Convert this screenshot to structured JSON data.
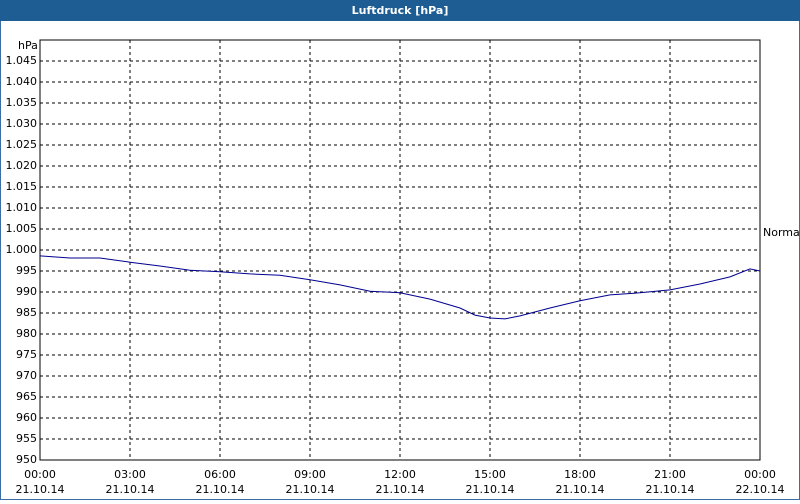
{
  "chart_data": {
    "type": "line",
    "title": "Luftdruck [hPa]",
    "y_unit": "hPa",
    "annotation": "Normal",
    "x": [
      "21.10.14 00:00",
      "21.10.14 01:00",
      "21.10.14 02:00",
      "21.10.14 03:00",
      "21.10.14 04:00",
      "21.10.14 05:00",
      "21.10.14 06:00",
      "21.10.14 07:00",
      "21.10.14 08:00",
      "21.10.14 09:00",
      "21.10.14 10:00",
      "21.10.14 11:00",
      "21.10.14 12:00",
      "21.10.14 13:00",
      "21.10.14 14:00",
      "21.10.14 14:30",
      "21.10.14 15:00",
      "21.10.14 15:30",
      "21.10.14 16:00",
      "21.10.14 17:00",
      "21.10.14 18:00",
      "21.10.14 19:00",
      "21.10.14 20:00",
      "21.10.14 21:00",
      "21.10.14 22:00",
      "21.10.14 23:00",
      "21.10.14 23:40",
      "22.10.14 00:00"
    ],
    "series": [
      {
        "color": "#000090",
        "values": [
          998.6,
          998.1,
          998.1,
          997.1,
          996.2,
          995.2,
          994.8,
          994.3,
          994.0,
          992.9,
          991.7,
          990.2,
          989.8,
          988.3,
          986.2,
          984.5,
          983.8,
          983.6,
          984.3,
          986.2,
          987.9,
          989.3,
          989.8,
          990.5,
          991.9,
          993.6,
          995.5,
          995.0
        ]
      }
    ],
    "xlim": [
      "21.10.14 00:00",
      "22.10.14 00:00"
    ],
    "xticks": [
      {
        "value": "21.10.14 00:00",
        "label": [
          "00:00",
          "21.10.14"
        ]
      },
      {
        "value": "21.10.14 03:00",
        "label": [
          "03:00",
          "21.10.14"
        ]
      },
      {
        "value": "21.10.14 06:00",
        "label": [
          "06:00",
          "21.10.14"
        ]
      },
      {
        "value": "21.10.14 09:00",
        "label": [
          "09:00",
          "21.10.14"
        ]
      },
      {
        "value": "21.10.14 12:00",
        "label": [
          "12:00",
          "21.10.14"
        ]
      },
      {
        "value": "21.10.14 15:00",
        "label": [
          "15:00",
          "21.10.14"
        ]
      },
      {
        "value": "21.10.14 18:00",
        "label": [
          "18:00",
          "21.10.14"
        ]
      },
      {
        "value": "21.10.14 21:00",
        "label": [
          "21:00",
          "21.10.14"
        ]
      },
      {
        "value": "22.10.14 00:00",
        "label": [
          "00:00",
          "22.10.14"
        ]
      }
    ],
    "ylim": [
      950,
      1050
    ],
    "yticks": [
      950,
      955,
      960,
      965,
      970,
      975,
      980,
      985,
      990,
      995,
      {
        "value": 1000,
        "label": "1.000"
      },
      {
        "value": 1005,
        "label": "1.005"
      },
      {
        "value": 1010,
        "label": "1.010"
      },
      {
        "value": 1015,
        "label": "1.015"
      },
      {
        "value": 1020,
        "label": "1.020"
      },
      {
        "value": 1025,
        "label": "1.025"
      },
      {
        "value": 1030,
        "label": "1.030"
      },
      {
        "value": 1035,
        "label": "1.035"
      },
      {
        "value": 1040,
        "label": "1.040"
      },
      {
        "value": 1045,
        "label": "1.045"
      }
    ],
    "grid": true
  }
}
